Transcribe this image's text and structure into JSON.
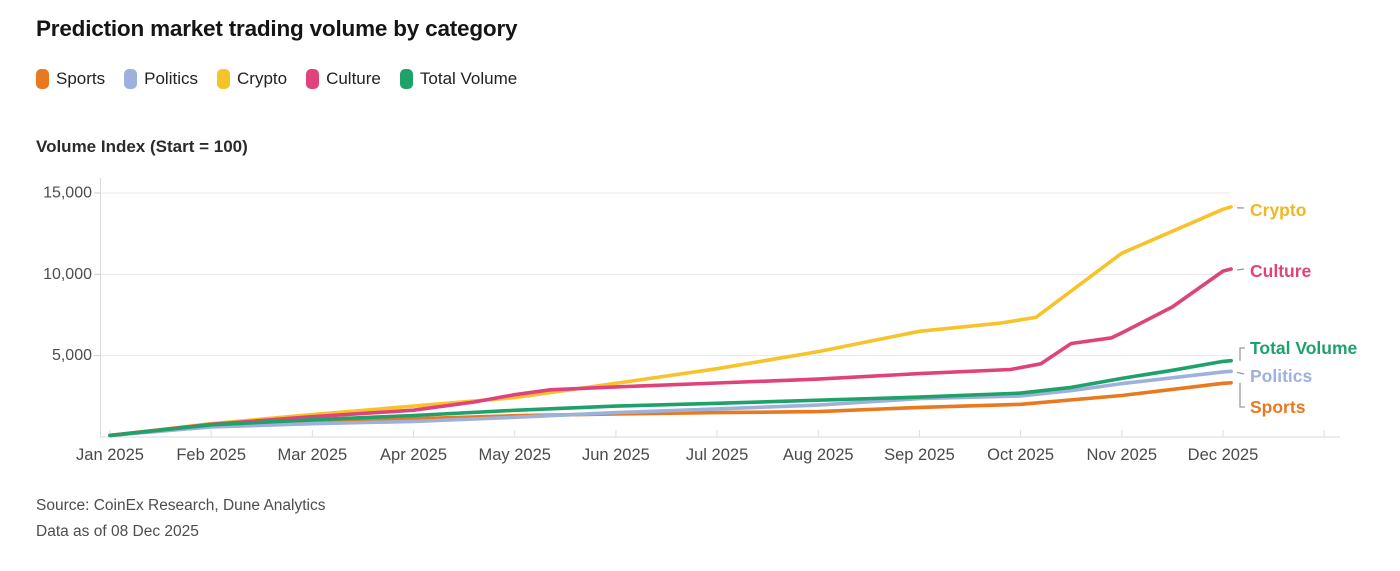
{
  "header": {
    "title": "Prediction market trading volume by category"
  },
  "legend": {
    "items": [
      {
        "label": "Sports",
        "color": "#E8791F"
      },
      {
        "label": "Politics",
        "color": "#9DB1DC"
      },
      {
        "label": "Crypto",
        "color": "#F7C32B"
      },
      {
        "label": "Culture",
        "color": "#E0437B"
      },
      {
        "label": "Total Volume",
        "color": "#1FA26A"
      }
    ]
  },
  "footer": {
    "source_line": "Source: CoinEx Research, Dune Analytics",
    "asof_line": "Data as of 08 Dec 2025"
  },
  "chart_data": {
    "type": "line",
    "title": "Prediction market trading volume by category",
    "xlabel": "",
    "ylabel": "Volume Index (Start = 100)",
    "x_tick_labels": [
      "Jan 2025",
      "Feb 2025",
      "Mar 2025",
      "Apr 2025",
      "May 2025",
      "Jun 2025",
      "Jul 2025",
      "Aug 2025",
      "Sep 2025",
      "Oct 2025",
      "Nov 2025",
      "Dec 2025"
    ],
    "y_ticks": [
      {
        "value": 5000,
        "label": "5,000"
      },
      {
        "value": 10000,
        "label": "10,000"
      },
      {
        "value": 15000,
        "label": "15,000"
      }
    ],
    "ylim": [
      0,
      15800
    ],
    "grid": "horizontal",
    "legend_position": "top",
    "series": [
      {
        "name": "Sports",
        "color": "#E8791F",
        "points": [
          [
            0,
            100
          ],
          [
            1,
            680
          ],
          [
            2,
            950
          ],
          [
            3,
            1120
          ],
          [
            4,
            1310
          ],
          [
            5,
            1420
          ],
          [
            6,
            1500
          ],
          [
            7,
            1560
          ],
          [
            8,
            1820
          ],
          [
            9,
            2010
          ],
          [
            10,
            2550
          ],
          [
            11,
            3300
          ],
          [
            11.08,
            3330
          ]
        ]
      },
      {
        "name": "Politics",
        "color": "#9DB1DC",
        "points": [
          [
            0,
            100
          ],
          [
            1,
            620
          ],
          [
            2,
            820
          ],
          [
            3,
            960
          ],
          [
            4,
            1210
          ],
          [
            5,
            1500
          ],
          [
            6,
            1730
          ],
          [
            7,
            1960
          ],
          [
            8,
            2360
          ],
          [
            9,
            2520
          ],
          [
            9.5,
            2850
          ],
          [
            10,
            3280
          ],
          [
            11,
            4000
          ],
          [
            11.08,
            4040
          ]
        ]
      },
      {
        "name": "Crypto",
        "color": "#F7C32B",
        "points": [
          [
            0,
            100
          ],
          [
            1,
            820
          ],
          [
            2,
            1380
          ],
          [
            3,
            1900
          ],
          [
            4,
            2420
          ],
          [
            5,
            3300
          ],
          [
            6,
            4200
          ],
          [
            7,
            5250
          ],
          [
            8,
            6500
          ],
          [
            8.8,
            7000
          ],
          [
            9.15,
            7350
          ],
          [
            10,
            11300
          ],
          [
            11,
            14000
          ],
          [
            11.08,
            14150
          ]
        ]
      },
      {
        "name": "Culture",
        "color": "#E0437B",
        "points": [
          [
            0,
            100
          ],
          [
            1,
            780
          ],
          [
            2,
            1250
          ],
          [
            3,
            1650
          ],
          [
            3.6,
            2150
          ],
          [
            4,
            2600
          ],
          [
            4.35,
            2900
          ],
          [
            5,
            3080
          ],
          [
            6,
            3320
          ],
          [
            7,
            3560
          ],
          [
            8,
            3900
          ],
          [
            8.9,
            4150
          ],
          [
            9.2,
            4500
          ],
          [
            9.5,
            5750
          ],
          [
            9.9,
            6100
          ],
          [
            10,
            6400
          ],
          [
            10.5,
            8000
          ],
          [
            11,
            10200
          ],
          [
            11.08,
            10330
          ]
        ]
      },
      {
        "name": "Total Volume",
        "color": "#1FA26A",
        "points": [
          [
            0,
            100
          ],
          [
            1,
            750
          ],
          [
            2,
            1060
          ],
          [
            3,
            1320
          ],
          [
            4,
            1640
          ],
          [
            5,
            1900
          ],
          [
            6,
            2070
          ],
          [
            7,
            2260
          ],
          [
            8,
            2450
          ],
          [
            9,
            2700
          ],
          [
            9.5,
            3050
          ],
          [
            10,
            3600
          ],
          [
            10.5,
            4100
          ],
          [
            11,
            4650
          ],
          [
            11.08,
            4690
          ]
        ]
      }
    ],
    "end_labels": [
      {
        "series": "Crypto",
        "label": "Crypto",
        "color": "#F1B722",
        "label_y": 40,
        "leader": "dash"
      },
      {
        "series": "Culture",
        "label": "Culture",
        "color": "#E0437B",
        "label_y": 101,
        "leader": "dash"
      },
      {
        "series": "Total Volume",
        "label": "Total Volume",
        "color": "#1FA26A",
        "label_y": 178,
        "leader": "bracket"
      },
      {
        "series": "Politics",
        "label": "Politics",
        "color": "#9DB1DC",
        "label_y": 206,
        "leader": "dash"
      },
      {
        "series": "Sports",
        "label": "Sports",
        "color": "#E8791F",
        "label_y": 237,
        "leader": "bracket"
      }
    ]
  }
}
